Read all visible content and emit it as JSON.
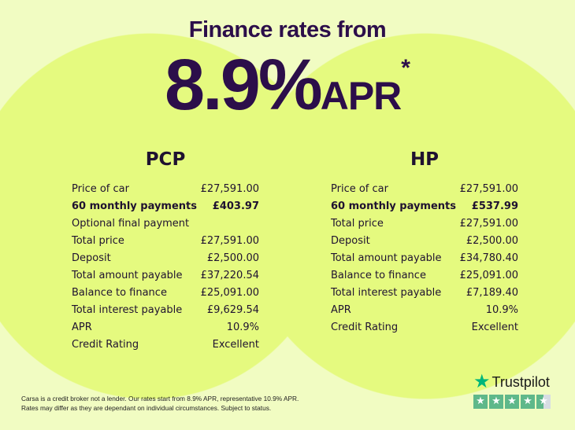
{
  "heading": {
    "title": "Finance rates from",
    "rate": "8.9%",
    "apr": "APR",
    "asterisk": "*"
  },
  "pcp": {
    "title": "PCP",
    "rows": [
      {
        "label": "Price of car",
        "value": "£27,591.00"
      },
      {
        "label": "60 monthly payments",
        "value": "£403.97",
        "bold": true
      },
      {
        "label": "Optional final payment",
        "value": ""
      },
      {
        "label": "Total price",
        "value": "£27,591.00"
      },
      {
        "label": "Deposit",
        "value": "£2,500.00"
      },
      {
        "label": "Total amount payable",
        "value": "£37,220.54"
      },
      {
        "label": "Balance to finance",
        "value": "£25,091.00"
      },
      {
        "label": "Total interest payable",
        "value": "£9,629.54"
      },
      {
        "label": "APR",
        "value": "10.9%"
      },
      {
        "label": "Credit Rating",
        "value": "Excellent"
      }
    ]
  },
  "hp": {
    "title": "HP",
    "rows": [
      {
        "label": "Price of car",
        "value": "£27,591.00"
      },
      {
        "label": "60 monthly payments",
        "value": "£537.99",
        "bold": true
      },
      {
        "label": "Total price",
        "value": "£27,591.00"
      },
      {
        "label": "Deposit",
        "value": "£2,500.00"
      },
      {
        "label": "Total amount payable",
        "value": "£34,780.40"
      },
      {
        "label": "Balance to finance",
        "value": "£25,091.00"
      },
      {
        "label": "Total interest payable",
        "value": "£7,189.40"
      },
      {
        "label": "APR",
        "value": "10.9%"
      },
      {
        "label": "Credit Rating",
        "value": "Excellent"
      }
    ]
  },
  "disclaimer": {
    "line1": "Carsa is a credit broker not a lender. Our rates start from 8.9% APR, representative 10.9% APR.",
    "line2": "Rates may differ as they are dependant on individual circumstances. Subject to status."
  },
  "trustpilot": {
    "name": "Trustpilot",
    "rating": 4.5,
    "max": 5,
    "color": "#00b67a"
  },
  "colors": {
    "background": "#f1fcc2",
    "circle": "#e5fa7f",
    "heading": "#2c0e4a"
  }
}
